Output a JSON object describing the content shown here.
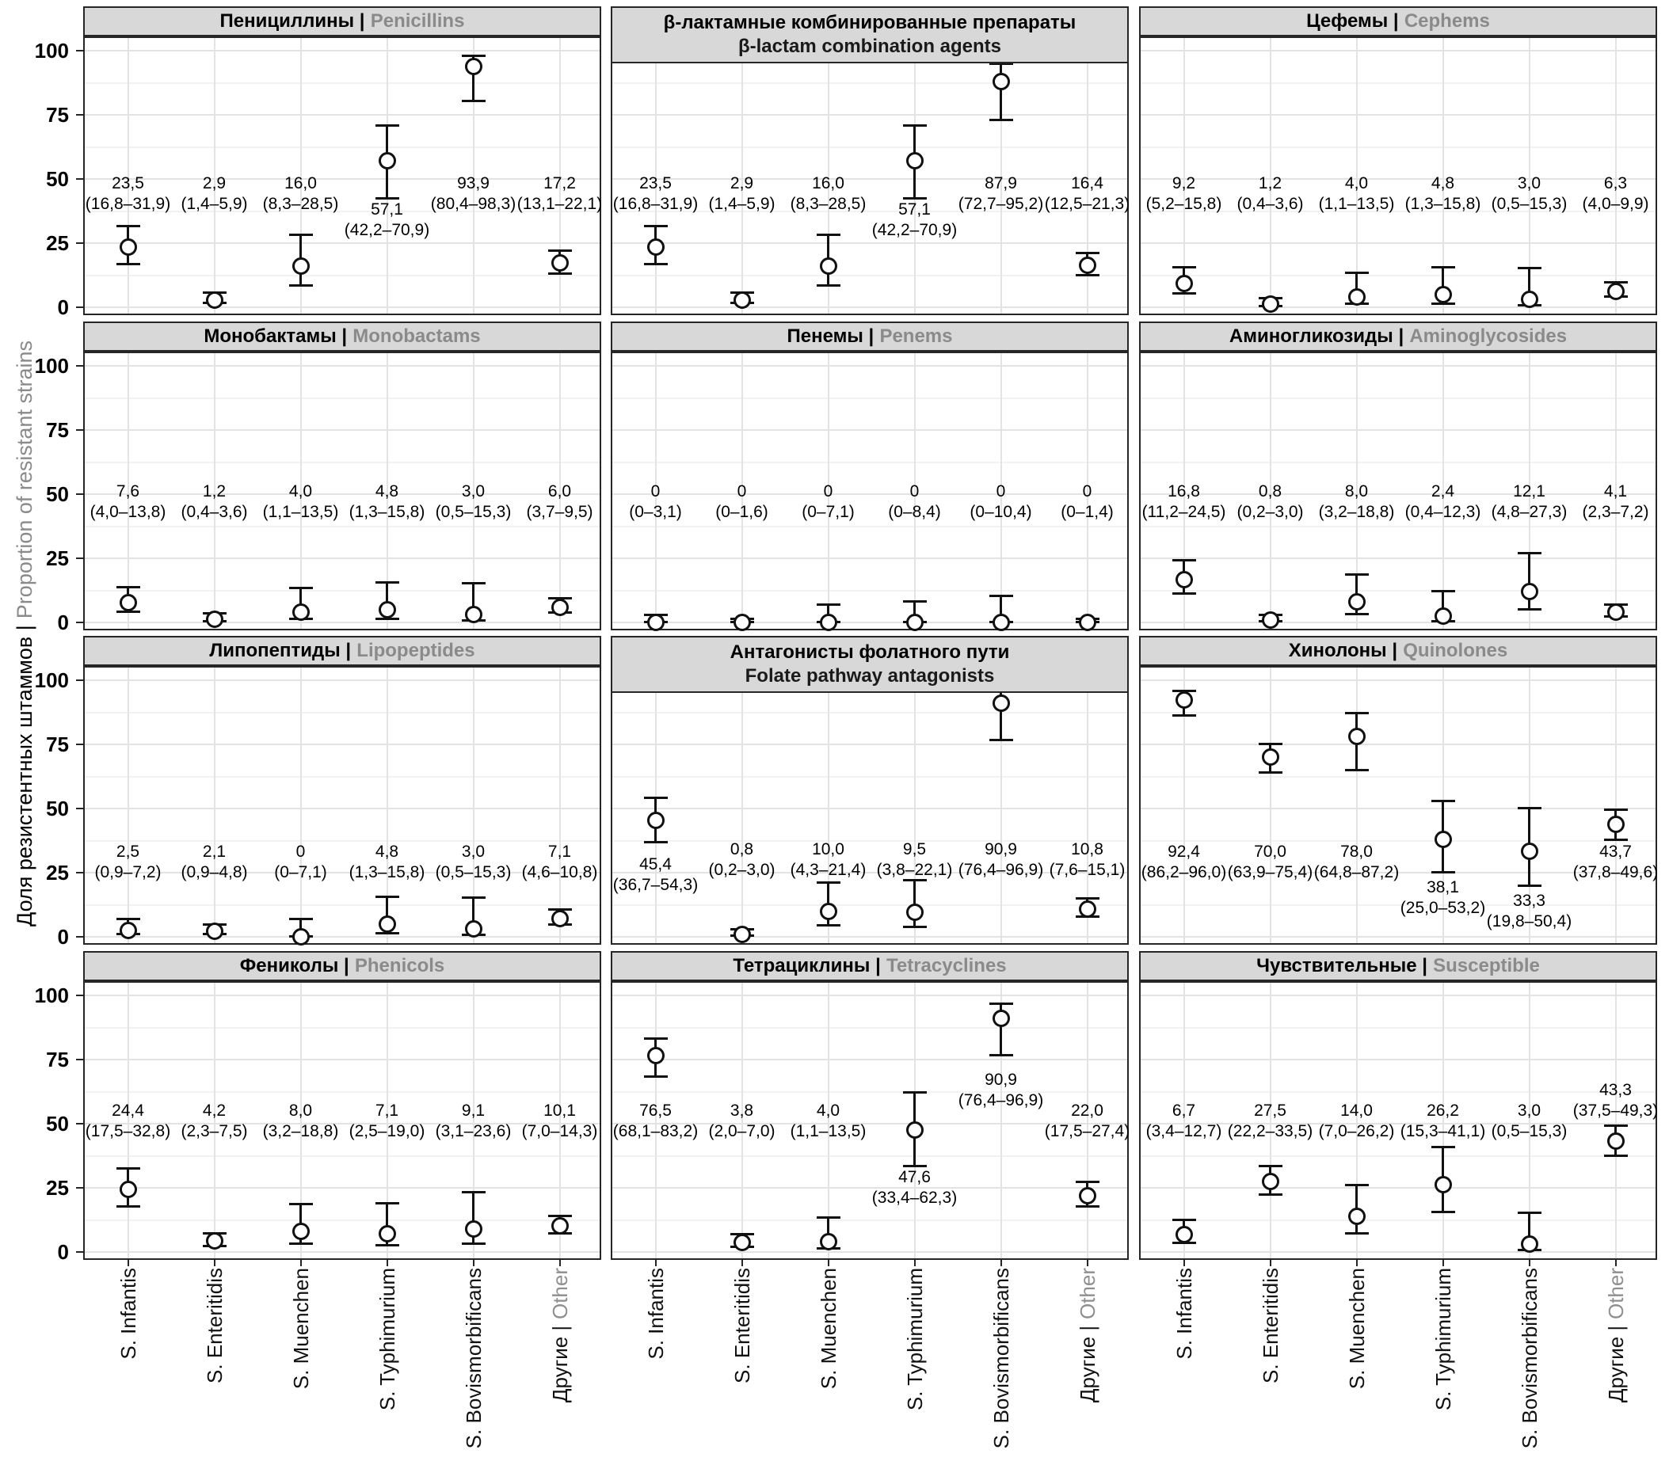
{
  "chart_data": {
    "type": "scatter",
    "subtype": "point-estimate-with-95ci-errorbars",
    "title_sep": "|",
    "ylabel_ru": "Доля резистентных штаммов |",
    "ylabel_en": "Proportion of resistant strains",
    "ylim": [
      0,
      100
    ],
    "yticks": [
      0,
      25,
      50,
      75,
      100
    ],
    "grid": {
      "horizontal_major": [
        0,
        25,
        50,
        75,
        100
      ],
      "horizontal_minor": [
        12.5,
        37.5,
        62.5,
        87.5
      ],
      "vertical_major": "category-centers"
    },
    "categories": [
      {
        "label": "S. Infantis",
        "label_en": ""
      },
      {
        "label": "S. Enteritidis",
        "label_en": ""
      },
      {
        "label": "S. Muenchen",
        "label_en": ""
      },
      {
        "label": "S. Typhimurium",
        "label_en": ""
      },
      {
        "label": "S. Bovismorbificans",
        "label_en": ""
      },
      {
        "label": "Другие",
        "label_en": "Other"
      }
    ],
    "panels": [
      {
        "title_ru": "Пенициллины",
        "title_en": "Penicillins",
        "title_layout": "inline",
        "values": [
          23.5,
          2.9,
          16.0,
          57.1,
          93.9,
          17.2
        ],
        "ci_low": [
          16.8,
          1.4,
          8.3,
          42.2,
          80.4,
          13.1
        ],
        "ci_high": [
          31.9,
          5.9,
          28.5,
          70.9,
          98.3,
          22.1
        ],
        "value_labels": [
          "23,5",
          "2,9",
          "16,0",
          "57,1",
          "93,9",
          "17,2"
        ],
        "ci_labels": [
          "(16,8–31,9)",
          "(1,4–5,9)",
          "(8,3–28,5)",
          "(42,2–70,9)",
          "(80,4–98,3)",
          "(13,1–22,1)"
        ],
        "label_y": [
          44,
          44,
          44,
          34,
          44,
          44
        ]
      },
      {
        "title_ru": "β-лактамные комбинированные препараты",
        "title_en": "β-lactam combination agents",
        "title_layout": "stacked",
        "values": [
          23.5,
          2.9,
          16.0,
          57.1,
          87.9,
          16.4
        ],
        "ci_low": [
          16.8,
          1.4,
          8.3,
          42.2,
          72.7,
          12.5
        ],
        "ci_high": [
          31.9,
          5.9,
          28.5,
          70.9,
          95.2,
          21.3
        ],
        "value_labels": [
          "23,5",
          "2,9",
          "16,0",
          "57,1",
          "87,9",
          "16,4"
        ],
        "ci_labels": [
          "(16,8–31,9)",
          "(1,4–5,9)",
          "(8,3–28,5)",
          "(42,2–70,9)",
          "(72,7–95,2)",
          "(12,5–21,3)"
        ],
        "label_y": [
          44,
          44,
          44,
          34,
          44,
          44
        ]
      },
      {
        "title_ru": "Цефемы",
        "title_en": "Cephems",
        "title_layout": "inline",
        "values": [
          9.2,
          1.2,
          4.0,
          4.8,
          3.0,
          6.3
        ],
        "ci_low": [
          5.2,
          0.4,
          1.1,
          1.3,
          0.5,
          4.0
        ],
        "ci_high": [
          15.8,
          3.6,
          13.5,
          15.8,
          15.3,
          9.9
        ],
        "value_labels": [
          "9,2",
          "1,2",
          "4,0",
          "4,8",
          "3,0",
          "6,3"
        ],
        "ci_labels": [
          "(5,2–15,8)",
          "(0,4–3,6)",
          "(1,1–13,5)",
          "(1,3–15,8)",
          "(0,5–15,3)",
          "(4,0–9,9)"
        ],
        "label_y": [
          44,
          44,
          44,
          44,
          44,
          44
        ]
      },
      {
        "title_ru": "Монобактамы",
        "title_en": "Monobactams",
        "title_layout": "inline",
        "values": [
          7.6,
          1.2,
          4.0,
          4.8,
          3.0,
          6.0
        ],
        "ci_low": [
          4.0,
          0.4,
          1.1,
          1.3,
          0.5,
          3.7
        ],
        "ci_high": [
          13.8,
          3.6,
          13.5,
          15.8,
          15.3,
          9.5
        ],
        "value_labels": [
          "7,6",
          "1,2",
          "4,0",
          "4,8",
          "3,0",
          "6,0"
        ],
        "ci_labels": [
          "(4,0–13,8)",
          "(0,4–3,6)",
          "(1,1–13,5)",
          "(1,3–15,8)",
          "(0,5–15,3)",
          "(3,7–9,5)"
        ],
        "label_y": [
          47,
          47,
          47,
          47,
          47,
          47
        ]
      },
      {
        "title_ru": "Пенемы",
        "title_en": "Penems",
        "title_layout": "inline",
        "values": [
          0,
          0,
          0,
          0,
          0,
          0
        ],
        "ci_low": [
          0,
          0,
          0,
          0,
          0,
          0
        ],
        "ci_high": [
          3.1,
          1.6,
          7.1,
          8.4,
          10.4,
          1.4
        ],
        "value_labels": [
          "0",
          "0",
          "0",
          "0",
          "0",
          "0"
        ],
        "ci_labels": [
          "(0–3,1)",
          "(0–1,6)",
          "(0–7,1)",
          "(0–8,4)",
          "(0–10,4)",
          "(0–1,4)"
        ],
        "label_y": [
          47,
          47,
          47,
          47,
          47,
          47
        ]
      },
      {
        "title_ru": "Аминогликозиды",
        "title_en": "Aminoglycosides",
        "title_layout": "inline",
        "values": [
          16.8,
          0.8,
          8.0,
          2.4,
          12.1,
          4.1
        ],
        "ci_low": [
          11.2,
          0.2,
          3.2,
          0.4,
          4.8,
          2.3
        ],
        "ci_high": [
          24.5,
          3.0,
          18.8,
          12.3,
          27.3,
          7.2
        ],
        "value_labels": [
          "16,8",
          "0,8",
          "8,0",
          "2,4",
          "12,1",
          "4,1"
        ],
        "ci_labels": [
          "(11,2–24,5)",
          "(0,2–3,0)",
          "(3,2–18,8)",
          "(0,4–12,3)",
          "(4,8–27,3)",
          "(2,3–7,2)"
        ],
        "label_y": [
          47,
          47,
          47,
          47,
          47,
          47
        ]
      },
      {
        "title_ru": "Липопептиды",
        "title_en": "Lipopeptides",
        "title_layout": "inline",
        "values": [
          2.5,
          2.1,
          0,
          4.8,
          3.0,
          7.1
        ],
        "ci_low": [
          0.9,
          0.9,
          0,
          1.3,
          0.5,
          4.6
        ],
        "ci_high": [
          7.2,
          4.8,
          7.1,
          15.8,
          15.3,
          10.8
        ],
        "value_labels": [
          "2,5",
          "2,1",
          "0",
          "4,8",
          "3,0",
          "7,1"
        ],
        "ci_labels": [
          "(0,9–7,2)",
          "(0,9–4,8)",
          "(0–7,1)",
          "(1,3–15,8)",
          "(0,5–15,3)",
          "(4,6–10,8)"
        ],
        "label_y": [
          29,
          29,
          29,
          29,
          29,
          29
        ]
      },
      {
        "title_ru": "Антагонисты фолатного пути",
        "title_en": "Folate pathway antagonists",
        "title_layout": "stacked",
        "values": [
          45.4,
          0.8,
          10.0,
          9.5,
          90.9,
          10.8
        ],
        "ci_low": [
          36.7,
          0.2,
          4.3,
          3.8,
          76.4,
          7.6
        ],
        "ci_high": [
          54.3,
          3.0,
          21.4,
          22.1,
          96.9,
          15.1
        ],
        "value_labels": [
          "45,4",
          "0,8",
          "10,0",
          "9,5",
          "90,9",
          "10,8"
        ],
        "ci_labels": [
          "(36,7–54,3)",
          "(0,2–3,0)",
          "(4,3–21,4)",
          "(3,8–22,1)",
          "(76,4–96,9)",
          "(7,6–15,1)"
        ],
        "label_y": [
          24,
          30,
          30,
          30,
          30,
          30
        ]
      },
      {
        "title_ru": "Хинолоны",
        "title_en": "Quinolones",
        "title_layout": "inline",
        "values": [
          92.4,
          70.0,
          78.0,
          38.1,
          33.3,
          43.7
        ],
        "ci_low": [
          86.2,
          63.9,
          64.8,
          25.0,
          19.8,
          37.8
        ],
        "ci_high": [
          96.0,
          75.4,
          87.2,
          53.2,
          50.4,
          49.6
        ],
        "value_labels": [
          "92,4",
          "70,0",
          "78,0",
          "38,1",
          "33,3",
          "43,7"
        ],
        "ci_labels": [
          "(86,2–96,0)",
          "(63,9–75,4)",
          "(64,8–87,2)",
          "(25,0–53,2)",
          "(19,8–50,4)",
          "(37,8–49,6)"
        ],
        "label_y": [
          29,
          29,
          29,
          15,
          10,
          29
        ]
      },
      {
        "title_ru": "Фениколы",
        "title_en": "Phenicols",
        "title_layout": "inline",
        "values": [
          24.4,
          4.2,
          8.0,
          7.1,
          9.1,
          10.1
        ],
        "ci_low": [
          17.5,
          2.3,
          3.2,
          2.5,
          3.1,
          7.0
        ],
        "ci_high": [
          32.8,
          7.5,
          18.8,
          19.0,
          23.6,
          14.3
        ],
        "value_labels": [
          "24,4",
          "4,2",
          "8,0",
          "7,1",
          "9,1",
          "10,1"
        ],
        "ci_labels": [
          "(17,5–32,8)",
          "(2,3–7,5)",
          "(3,2–18,8)",
          "(2,5–19,0)",
          "(3,1–23,6)",
          "(7,0–14,3)"
        ],
        "label_y": [
          51,
          51,
          51,
          51,
          51,
          51
        ]
      },
      {
        "title_ru": "Тетрациклины",
        "title_en": "Tetracyclines",
        "title_layout": "inline",
        "values": [
          76.5,
          3.8,
          4.0,
          47.6,
          90.9,
          22.0
        ],
        "ci_low": [
          68.1,
          2.0,
          1.1,
          33.4,
          76.4,
          17.5
        ],
        "ci_high": [
          83.2,
          7.0,
          13.5,
          62.3,
          96.9,
          27.4
        ],
        "value_labels": [
          "76,5",
          "3,8",
          "4,0",
          "47,6",
          "90,9",
          "22,0"
        ],
        "ci_labels": [
          "(68,1–83,2)",
          "(2,0–7,0)",
          "(1,1–13,5)",
          "(33,4–62,3)",
          "(76,4–96,9)",
          "(17,5–27,4)"
        ],
        "label_y": [
          51,
          51,
          51,
          25,
          63,
          51
        ]
      },
      {
        "title_ru": "Чувствительные",
        "title_en": "Susceptible",
        "title_layout": "inline",
        "values": [
          6.7,
          27.5,
          14.0,
          26.2,
          3.0,
          43.3
        ],
        "ci_low": [
          3.4,
          22.2,
          7.0,
          15.3,
          0.5,
          37.5
        ],
        "ci_high": [
          12.7,
          33.5,
          26.2,
          41.1,
          15.3,
          49.3
        ],
        "value_labels": [
          "6,7",
          "27,5",
          "14,0",
          "26,2",
          "3,0",
          "43,3"
        ],
        "ci_labels": [
          "(3,4–12,7)",
          "(22,2–33,5)",
          "(7,0–26,2)",
          "(15,3–41,1)",
          "(0,5–15,3)",
          "(37,5–49,3)"
        ],
        "label_y": [
          51,
          51,
          51,
          51,
          51,
          59
        ]
      }
    ]
  }
}
